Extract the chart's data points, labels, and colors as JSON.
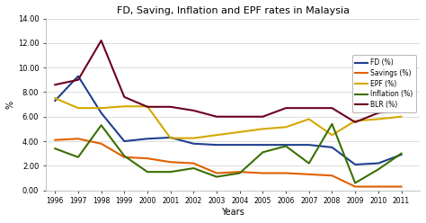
{
  "title": "FD, Saving, Inflation and EPF rates in Malaysia",
  "xlabel": "Years",
  "ylabel": "%",
  "years": [
    1996,
    1997,
    1998,
    1999,
    2000,
    2001,
    2002,
    2003,
    2004,
    2005,
    2006,
    2007,
    2008,
    2009,
    2010,
    2011
  ],
  "FD": [
    7.3,
    9.3,
    6.3,
    4.0,
    4.2,
    4.3,
    3.8,
    3.7,
    3.7,
    3.7,
    3.7,
    3.7,
    3.5,
    2.1,
    2.2,
    2.9
  ],
  "Savings": [
    4.1,
    4.2,
    3.8,
    2.7,
    2.6,
    2.3,
    2.2,
    1.4,
    1.5,
    1.4,
    1.4,
    1.3,
    1.2,
    0.3,
    0.3,
    0.3
  ],
  "EPF": [
    7.5,
    6.7,
    6.7,
    6.84,
    6.84,
    4.25,
    4.25,
    4.5,
    4.75,
    5.0,
    5.15,
    5.8,
    4.5,
    5.65,
    5.8,
    6.0
  ],
  "Inflation": [
    3.4,
    2.7,
    5.3,
    2.8,
    1.5,
    1.5,
    1.8,
    1.1,
    1.4,
    3.1,
    3.6,
    2.2,
    5.4,
    0.6,
    1.7,
    3.0
  ],
  "BLR": [
    8.6,
    9.0,
    12.2,
    7.6,
    6.8,
    6.8,
    6.5,
    6.0,
    6.0,
    6.0,
    6.7,
    6.7,
    6.7,
    5.55,
    6.3,
    6.6
  ],
  "colors": {
    "FD": "#1f3f8f",
    "Savings": "#e06000",
    "EPF": "#d4a800",
    "Inflation": "#3a7000",
    "BLR": "#6b0020"
  },
  "ylim": [
    0.0,
    14.0
  ],
  "yticks": [
    0.0,
    2.0,
    4.0,
    6.0,
    8.0,
    10.0,
    12.0,
    14.0
  ],
  "background_color": "#ffffff",
  "grid_color": "#d8d8d8",
  "linewidth": 1.5
}
